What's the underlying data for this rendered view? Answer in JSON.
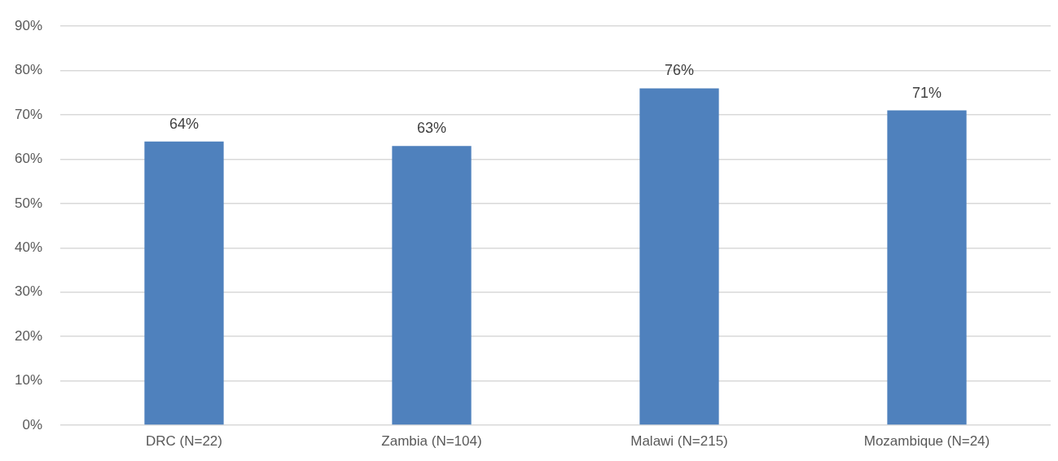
{
  "chart_data": {
    "type": "bar",
    "categories": [
      "DRC (N=22)",
      "Zambia (N=104)",
      "Malawi (N=215)",
      "Mozambique (N=24)"
    ],
    "values": [
      64,
      63,
      76,
      71
    ],
    "color": "#4f81bd",
    "value_labels": [
      "64%",
      "63%",
      "76%",
      "71%"
    ],
    "ylim": [
      0,
      90
    ],
    "yticks": [
      {
        "value": 0,
        "label": "0%"
      },
      {
        "value": 10,
        "label": "10%"
      },
      {
        "value": 20,
        "label": "20%"
      },
      {
        "value": 30,
        "label": "30%"
      },
      {
        "value": 40,
        "label": "40%"
      },
      {
        "value": 50,
        "label": "50%"
      },
      {
        "value": 60,
        "label": "60%"
      },
      {
        "value": 70,
        "label": "70%"
      },
      {
        "value": 80,
        "label": "80%"
      },
      {
        "value": 90,
        "label": "90%"
      }
    ],
    "grid": "y"
  }
}
